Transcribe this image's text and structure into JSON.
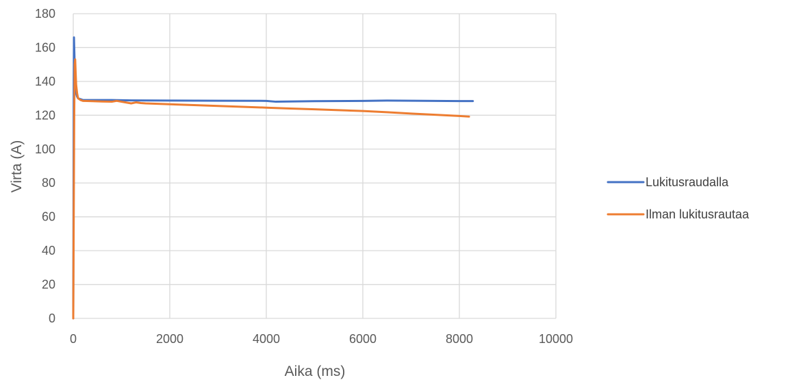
{
  "chart_data": {
    "type": "line",
    "title": "",
    "xlabel": "Aika (ms)",
    "ylabel": "Virta (A)",
    "xlim": [
      0,
      10000
    ],
    "ylim": [
      0,
      180
    ],
    "xticks": [
      0,
      2000,
      4000,
      6000,
      8000,
      10000
    ],
    "yticks": [
      0,
      20,
      40,
      60,
      80,
      100,
      120,
      140,
      160,
      180
    ],
    "grid": true,
    "legend_position": "right",
    "series": [
      {
        "name": "Lukitusraudalla",
        "color": "#4472C4",
        "x": [
          0,
          5,
          10,
          15,
          20,
          30,
          40,
          60,
          80,
          100,
          150,
          200,
          400,
          800,
          1200,
          2000,
          3000,
          4000,
          4200,
          5000,
          6000,
          6500,
          7000,
          8000,
          8280
        ],
        "y": [
          0,
          60,
          140,
          166,
          160,
          150,
          140,
          133,
          131,
          130,
          129.5,
          129,
          129,
          129,
          128.8,
          128.7,
          128.6,
          128.5,
          128,
          128.3,
          128.5,
          128.7,
          128.6,
          128.4,
          128.4
        ]
      },
      {
        "name": "Ilman lukitusrautaa",
        "color": "#ED7D31",
        "x": [
          0,
          10,
          20,
          30,
          40,
          50,
          60,
          80,
          100,
          150,
          200,
          400,
          600,
          800,
          900,
          1000,
          1100,
          1200,
          1300,
          1400,
          1500,
          2000,
          2500,
          3000,
          3500,
          4000,
          4500,
          5000,
          5500,
          6000,
          6500,
          7000,
          7500,
          8000,
          8200
        ],
        "y": [
          0,
          60,
          120,
          150,
          153,
          145,
          138,
          133,
          130,
          129,
          128.5,
          128.3,
          128.1,
          128,
          128.5,
          128,
          127.5,
          127,
          127.6,
          127.2,
          127,
          126.5,
          126,
          125.5,
          125,
          124.5,
          124,
          123.5,
          123,
          122.5,
          121.8,
          121,
          120.3,
          119.6,
          119.2
        ]
      }
    ]
  }
}
